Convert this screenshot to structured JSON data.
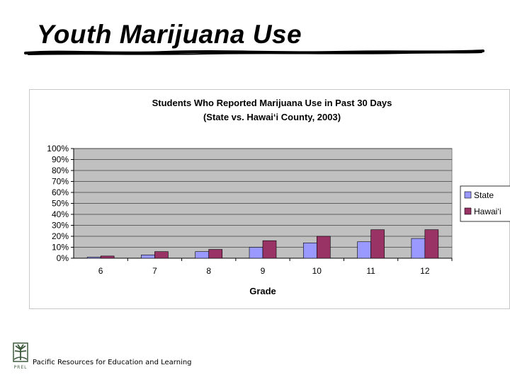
{
  "slide": {
    "title": "Youth Marijuana Use",
    "footer": "Pacific Resources for Education and Learning",
    "logo_letters": "PREL"
  },
  "colors": {
    "plot_background": "#c0c0c0",
    "state": "#9999ff",
    "hawaii": "#993366"
  },
  "chart_data": {
    "type": "bar",
    "title": "Students Who Reported Marijuana Use in Past 30 Days",
    "subtitle": "(State vs. Hawai‘i County, 2003)",
    "xlabel": "Grade",
    "ylabel": "",
    "categories": [
      "6",
      "7",
      "8",
      "9",
      "10",
      "11",
      "12"
    ],
    "ylim": [
      0,
      100
    ],
    "ytick_labels": [
      "0%",
      "10%",
      "20%",
      "30%",
      "40%",
      "50%",
      "60%",
      "70%",
      "80%",
      "90%",
      "100%"
    ],
    "y_unit": "%",
    "grid": true,
    "legend_position": "right",
    "series": [
      {
        "name": "State",
        "values": [
          1,
          3,
          6,
          10,
          14,
          15,
          18
        ]
      },
      {
        "name": "Hawai‘i",
        "values": [
          2,
          6,
          8,
          16,
          20,
          26,
          26
        ]
      }
    ]
  }
}
